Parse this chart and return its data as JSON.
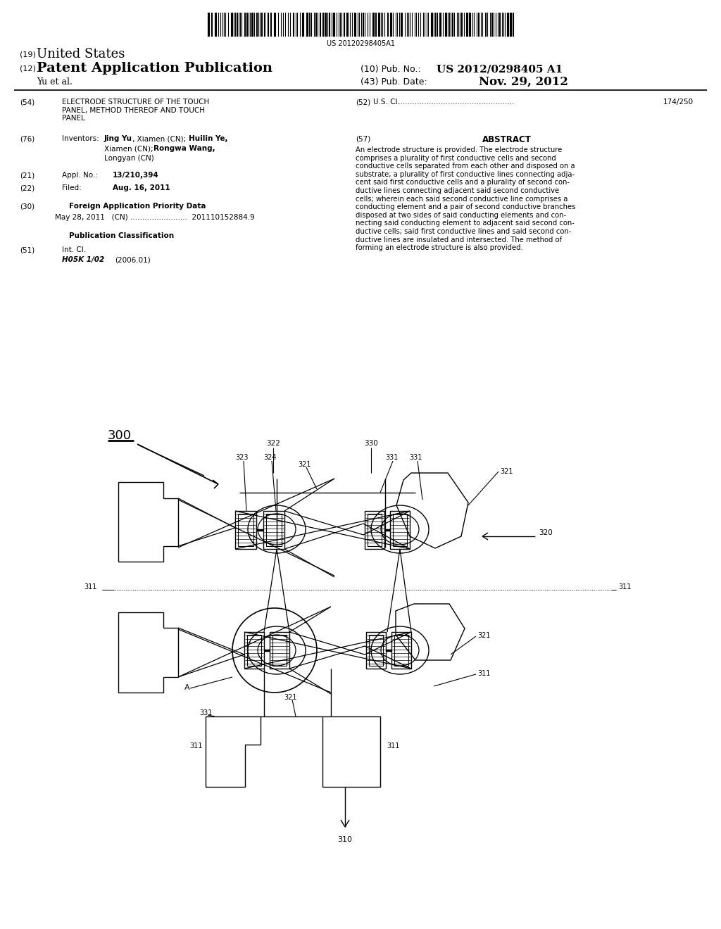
{
  "bg_color": "#ffffff",
  "barcode_text": "US 20120298405A1",
  "header_19": "(19)",
  "header_country": "United States",
  "header_12": "(12)",
  "header_type": "Patent Application Publication",
  "header_author": "Yu et al.",
  "header_10": "(10) Pub. No.:",
  "header_pubno": "US 2012/0298405 A1",
  "header_43": "(43) Pub. Date:",
  "header_pubdate": "Nov. 29, 2012",
  "field_54_num": "(54)",
  "field_54_text": "ELECTRODE STRUCTURE OF THE TOUCH\nPANEL, METHOD THEREOF AND TOUCH\nPANEL",
  "field_52_num": "(52)",
  "field_52_label": "U.S. Cl.",
  "field_52_dots": "....................................................",
  "field_52_val": "174/250",
  "field_76_num": "(76)",
  "field_76_label": "Inventors:",
  "field_76_name1": "Jing Yu",
  "field_76_text1": ", Xiamen (CN);",
  "field_76_name2": "Huilin Ye,",
  "field_76_text2": "Xiamen (CN);",
  "field_76_name3": "Rongwa Wang,",
  "field_76_text3": "Longyan (CN)",
  "field_57_num": "(57)",
  "field_57_label": "ABSTRACT",
  "field_57_text": "An electrode structure is provided. The electrode structure\ncomprises a plurality of first conductive cells and second\nconductive cells separated from each other and disposed on a\nsubstrate; a plurality of first conductive lines connecting adja-\ncent said first conductive cells and a plurality of second con-\nductive lines connecting adjacent said second conductive\ncells; wherein each said second conductive line comprises a\nconducting element and a pair of second conductive branches\ndisposed at two sides of said conducting elements and con-\nnecting said conducting element to adjacent said second con-\nductive cells; said first conductive lines and said second con-\nductive lines are insulated and intersected. The method of\nforming an electrode structure is also provided.",
  "field_21_num": "(21)",
  "field_21_label": "Appl. No.:",
  "field_21_val": "13/210,394",
  "field_22_num": "(22)",
  "field_22_label": "Filed:",
  "field_22_val": "Aug. 16, 2011",
  "field_30_num": "(30)",
  "field_30_label": "Foreign Application Priority Data",
  "field_30_text": "May 28, 2011   (CN) ........................  201110152884.9",
  "pubclass_label": "Publication Classification",
  "field_51_num": "(51)",
  "field_51_label": "Int. Cl.",
  "field_51_val": "H05K 1/02",
  "field_51_date": "(2006.01)"
}
